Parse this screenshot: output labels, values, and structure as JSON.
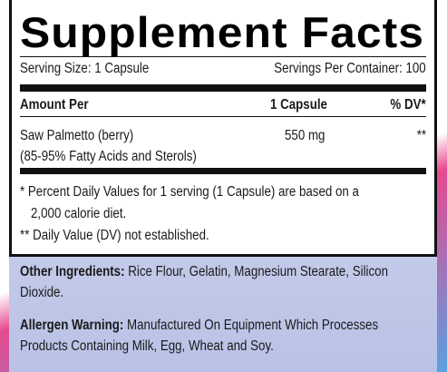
{
  "title": "Supplement Facts",
  "serving_size": "Serving Size: 1 Capsule",
  "servings_per_container": "Servings Per Container: 100",
  "table": {
    "header": [
      "Amount Per",
      "1 Capsule",
      "% DV*"
    ],
    "rows": [
      [
        "Saw Palmetto (berry)",
        "550 mg",
        "**"
      ]
    ],
    "note": "(85-95% Fatty Acids and Sterols)"
  },
  "footnotes": [
    "* Percent Daily Values for 1 serving (1 Capsule) are based on a",
    "2,000 calorie diet.",
    "** Daily Value (DV) not established."
  ],
  "other_ingredients": {
    "label": "Other Ingredients:",
    "text": "Rice Flour, Gelatin, Magnesium Stearate, Silicon Dioxide."
  },
  "allergen_warning": {
    "label": "Allergen Warning:",
    "text": "Manufactured On Equipment Which Processes Products Containing Milk, Egg, Wheat and Soy."
  }
}
